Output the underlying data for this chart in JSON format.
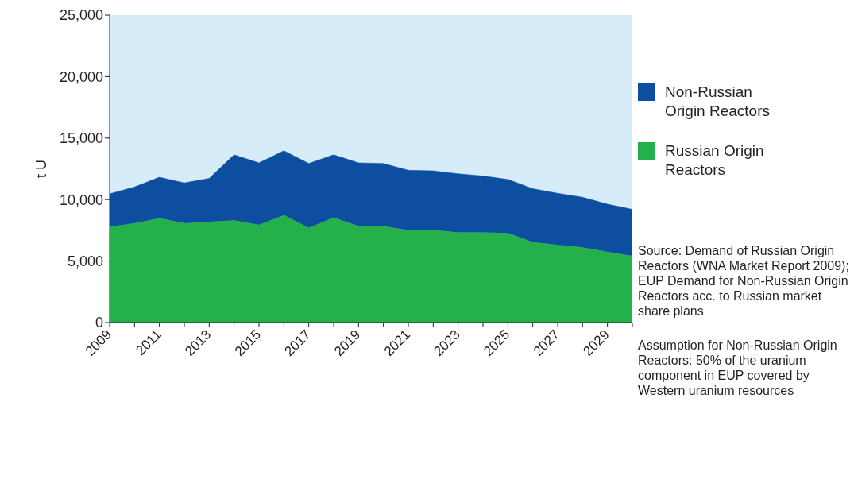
{
  "chart_data": {
    "type": "area",
    "stacked": true,
    "ylabel": "t U",
    "x": [
      2009,
      2010,
      2011,
      2012,
      2013,
      2014,
      2015,
      2016,
      2017,
      2018,
      2019,
      2020,
      2021,
      2022,
      2023,
      2024,
      2025,
      2026,
      2027,
      2028,
      2029,
      2030
    ],
    "series": [
      {
        "name": "Russian Origin Reactors",
        "color": "#24b14c",
        "values": [
          7800,
          8080,
          8500,
          8080,
          8180,
          8320,
          7940,
          8740,
          7710,
          8550,
          7850,
          7850,
          7520,
          7520,
          7340,
          7340,
          7290,
          6540,
          6310,
          6120,
          5750,
          5420
        ]
      },
      {
        "name": "Non-Russian Origin Reactors",
        "color": "#0d4ea0",
        "values": [
          2670,
          2950,
          3320,
          3280,
          3550,
          5320,
          5050,
          5230,
          5230,
          5090,
          5140,
          5090,
          4860,
          4820,
          4760,
          4580,
          4350,
          4350,
          4200,
          4070,
          3880,
          3790
        ]
      }
    ],
    "xlim": [
      2009,
      2030
    ],
    "xticks": [
      2009,
      {
        "value": 2010,
        "label": null
      },
      2011,
      {
        "value": 2012,
        "label": null
      },
      2013,
      {
        "value": 2014,
        "label": null
      },
      2015,
      {
        "value": 2016,
        "label": null
      },
      2017,
      {
        "value": 2018,
        "label": null
      },
      2019,
      {
        "value": 2020,
        "label": null
      },
      2021,
      {
        "value": 2022,
        "label": null
      },
      2023,
      {
        "value": 2024,
        "label": null
      },
      2025,
      {
        "value": 2026,
        "label": null
      },
      2027,
      {
        "value": 2028,
        "label": null
      },
      2029,
      {
        "value": 2030,
        "label": null
      }
    ],
    "ylim": [
      0,
      25000
    ],
    "yticks": [
      0,
      {
        "value": 5000,
        "label": "5,000"
      },
      {
        "value": 10000,
        "label": "10,000"
      },
      {
        "value": 15000,
        "label": "15,000"
      },
      {
        "value": 20000,
        "label": "20,000"
      },
      {
        "value": 25000,
        "label": "25,000"
      }
    ],
    "legend": "right",
    "annotations": [
      "Source: Demand of Russian Origin Reactors (WNA Market Report 2009); EUP Demand for Non-Russian Origin Reactors acc. to Russian market share plans",
      "Assumption for Non-Russian Origin Reactors: 50% of the uranium component in EUP covered by Western uranium resources"
    ]
  }
}
